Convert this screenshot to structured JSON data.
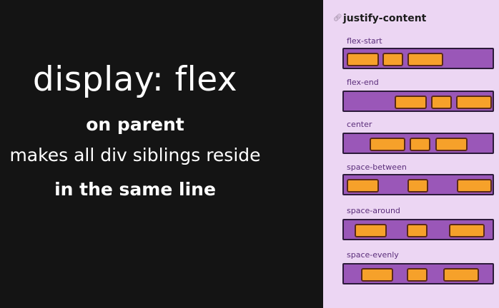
{
  "left": {
    "headline": "display: flex",
    "line1": "on parent",
    "line2": "makes all div siblings reside",
    "line3": "in the same line"
  },
  "right": {
    "icon": "link-icon",
    "title": "justify-content",
    "rows": [
      {
        "label": "flex-start"
      },
      {
        "label": "flex-end"
      },
      {
        "label": "center"
      },
      {
        "label": "space-between"
      },
      {
        "label": "space-around"
      },
      {
        "label": "space-evenly"
      }
    ]
  },
  "colors": {
    "dark_bg": "#141414",
    "panel_bg": "#ecd6f3",
    "bar_purple": "#9a57b8",
    "box_orange": "#f6a12a"
  }
}
